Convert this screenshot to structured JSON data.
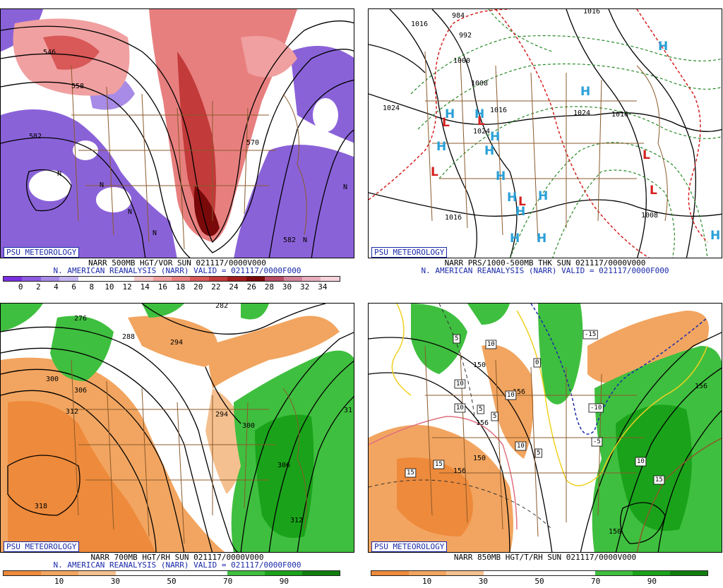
{
  "badge": "PSU METEOROLOGY",
  "panels": [
    {
      "title1": "NARR 500MB HGT/VOR SUN 021117/0000V000",
      "title2": "N. AMERICAN REANALYSIS (NARR) VALID = 021117/0000F000",
      "colorbar": {
        "colors": [
          "#7a2fe0",
          "#8d5ae0",
          "#a78be6",
          "#c4b4ef",
          "#ffffff",
          "#ffffff",
          "#ffffff",
          "#f2c8c8",
          "#f0a0a0",
          "#e87f7f",
          "#d95858",
          "#c23a3a",
          "#a11d1d",
          "#7a0909",
          "#b84b63",
          "#d2849a",
          "#e6aebe",
          "#f6d3dc"
        ],
        "ticks": [
          "0",
          "2",
          "4",
          "6",
          "8",
          "10",
          "12",
          "14",
          "16",
          "18",
          "20",
          "22",
          "24",
          "26",
          "28",
          "30",
          "32",
          "34"
        ]
      },
      "labels": [
        "546",
        "558",
        "570",
        "582",
        "582",
        "N",
        "N",
        "N",
        "N",
        "N",
        "N"
      ]
    },
    {
      "title1": "NARR PRS/1000-500MB THK SUN 021117/0000V000",
      "title2": "N. AMERICAN REANALYSIS (NARR) VALID = 021117/0000F000",
      "labels": [
        "984",
        "992",
        "1000",
        "1008",
        "1016",
        "1024",
        "1024",
        "1024",
        "1016",
        "1016",
        "1016",
        "1008",
        "1016"
      ],
      "highs": [
        "H",
        "H",
        "H",
        "H",
        "H",
        "H",
        "H",
        "H",
        "H",
        "H",
        "H",
        "H",
        "H",
        "H"
      ],
      "lows": [
        "L",
        "L",
        "L",
        "L",
        "L",
        "L"
      ]
    },
    {
      "title1": "NARR 700MB HGT/RH SUN 021117/0000V000",
      "title2": "N. AMERICAN REANALYSIS (NARR) VALID = 021117/0000F000",
      "colorbar": {
        "colors": [
          "#ee8a3b",
          "#f2a560",
          "#f5c08f",
          "#ffffff",
          "#ffffff",
          "#ffffff",
          "#3fbf3f",
          "#1aa31a",
          "#0f7f0f"
        ],
        "ticks": [
          "10",
          "30",
          "50",
          "70",
          "90"
        ]
      },
      "labels": [
        "282",
        "276",
        "288",
        "294",
        "300",
        "306",
        "312",
        "294",
        "300",
        "306",
        "312",
        "318",
        "31"
      ]
    },
    {
      "title1": "NARR 850MB HGT/T/RH SUN 021117/0000V000",
      "title2": "",
      "colorbar": {
        "colors": [
          "#ee8a3b",
          "#f2a560",
          "#f5c08f",
          "#ffffff",
          "#ffffff",
          "#ffffff",
          "#3fbf3f",
          "#1aa31a",
          "#0f7f0f"
        ],
        "ticks": [
          "10",
          "30",
          "50",
          "70",
          "90"
        ]
      },
      "labels": [
        "150",
        "156",
        "156",
        "150",
        "156",
        "150",
        "156"
      ],
      "boxed": [
        "5",
        "10",
        "10",
        "5",
        "5",
        "10",
        "10",
        "15",
        "15",
        "10",
        "5",
        "-5",
        "-10",
        "-15",
        "10",
        "15",
        "0"
      ]
    }
  ]
}
